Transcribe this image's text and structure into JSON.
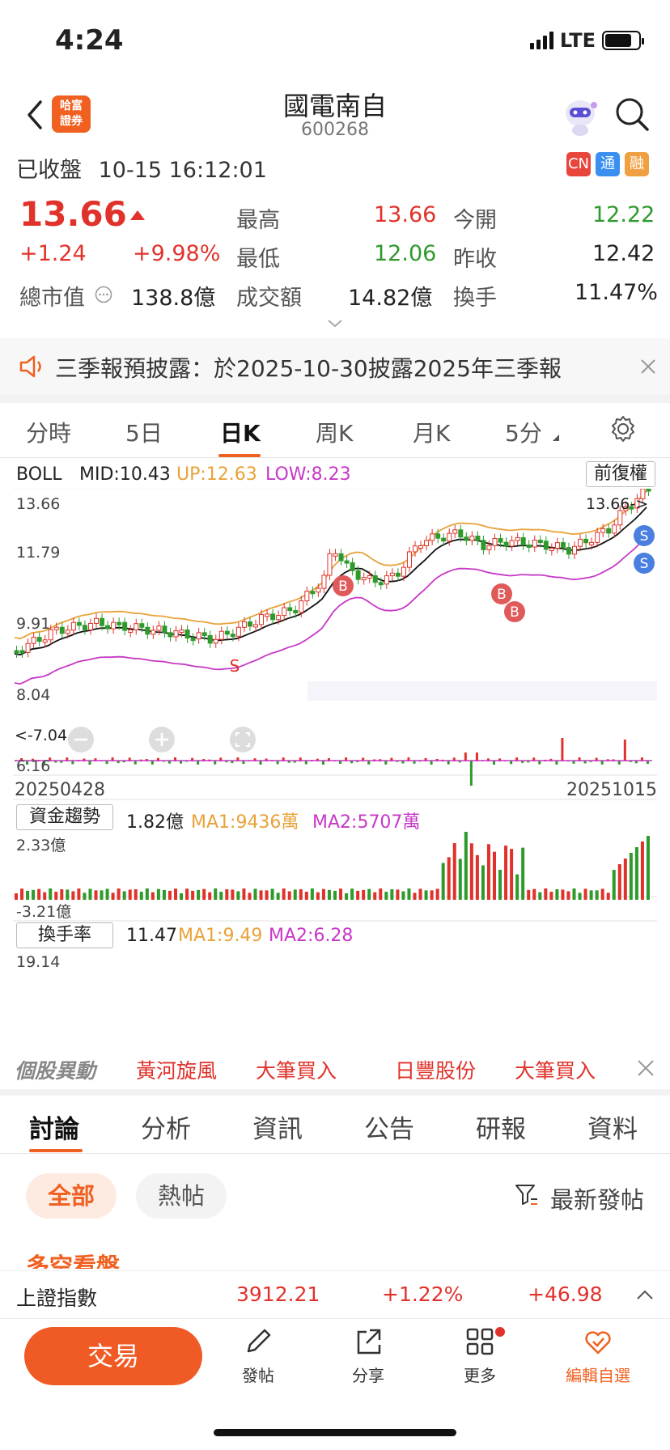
{
  "status_bar": {
    "time": "4:24",
    "network": "LTE"
  },
  "header": {
    "title": "國電南自",
    "code": "600268",
    "logo_text_1": "哈富",
    "logo_text_2": "證券"
  },
  "market_status": {
    "label": "已收盤",
    "timestamp": "10-15 16:12:01",
    "tags": [
      "CN",
      "通",
      "融"
    ]
  },
  "quote": {
    "price": "13.66",
    "change": "+1.24",
    "change_pct": "+9.98%",
    "market_cap_label": "總市值",
    "market_cap": "138.8億",
    "high_label": "最高",
    "high": "13.66",
    "low_label": "最低",
    "low": "12.06",
    "amount_label": "成交額",
    "amount": "14.82億",
    "open_label": "今開",
    "open": "12.22",
    "prev_close_label": "昨收",
    "prev_close": "12.42",
    "turnover_label": "換手",
    "turnover": "11.47%"
  },
  "notice": {
    "text": "三季報預披露：於2025-10-30披露2025年三季報"
  },
  "chart_tabs": [
    {
      "label": "分時"
    },
    {
      "label": "5日"
    },
    {
      "label": "日K"
    },
    {
      "label": "周K"
    },
    {
      "label": "月K"
    },
    {
      "label": "5分"
    }
  ],
  "boll": {
    "label": "BOLL",
    "mid": "MID:10.43",
    "up": "UP:12.63",
    "low": "LOW:8.23",
    "adjust_button": "前復權",
    "y_ticks": [
      "13.66",
      "11.79",
      "9.91",
      "8.04",
      "6.16"
    ],
    "start_date": "20250428",
    "end_date": "20251015",
    "max_marker": "13.66->",
    "min_marker": "<-7.04"
  },
  "capital_flow": {
    "label": "資金趨勢",
    "value": "1.82億",
    "ma1": "MA1:9436萬",
    "ma2": "MA2:5707萬",
    "y_top": "2.33億",
    "y_bottom": "-3.21億"
  },
  "turnover_rate": {
    "label": "換手率",
    "value": "11.47",
    "ma1": "MA1:9.49",
    "ma2": "MA2:6.28",
    "y_top": "19.14"
  },
  "ticker_row": {
    "label": "個股異動",
    "items": [
      "黃河旋風",
      "大筆買入",
      "日豐股份",
      "大筆買入"
    ]
  },
  "bottom_tabs": [
    {
      "label": "討論"
    },
    {
      "label": "分析"
    },
    {
      "label": "資訊"
    },
    {
      "label": "公告"
    },
    {
      "label": "研報"
    },
    {
      "label": "資料"
    }
  ],
  "filters": {
    "all": "全部",
    "hot": "熱帖",
    "sort": "最新發帖"
  },
  "partial_section": "多空看盤",
  "index_bar": {
    "name": "上證指數",
    "value": "3912.21",
    "pct": "+1.22%",
    "change": "+46.98"
  },
  "bottom_nav": {
    "trade": "交易",
    "post": "發帖",
    "share": "分享",
    "more": "更多",
    "watch": "編輯自選"
  },
  "colors": {
    "up": "#e0322b",
    "down": "#2e9a2c",
    "accent": "#f06020",
    "ma1": "#e8a23a",
    "ma2": "#c738c7"
  }
}
